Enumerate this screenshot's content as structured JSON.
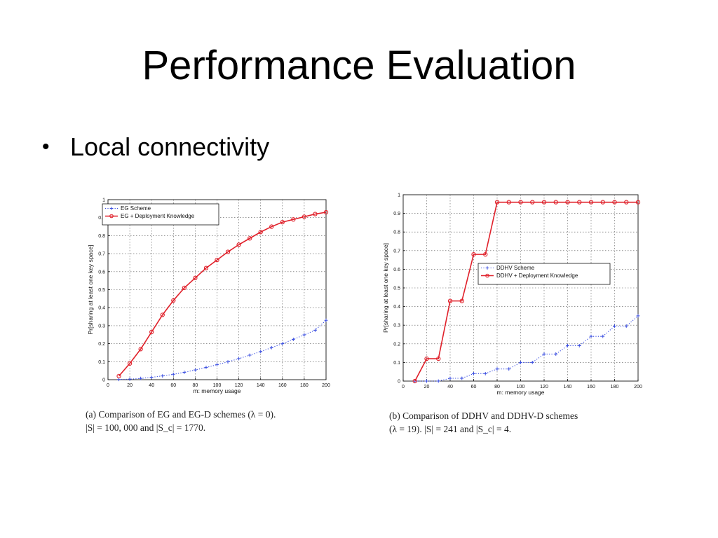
{
  "slide": {
    "title": "Performance Evaluation",
    "bullet_marker": "•",
    "bullet": "Local connectivity"
  },
  "captions": {
    "a_line1": "(a) Comparison of EG and EG-D schemes (λ = 0).",
    "a_line2": "|S| = 100, 000 and |S_c| = 1770.",
    "b_line1": "(b) Comparison of DDHV and DDHV-D schemes",
    "b_line2": "(λ = 19). |S| = 241 and |S_c| = 4."
  },
  "chart_data": [
    {
      "type": "line",
      "xlabel": "m: memory usage",
      "ylabel": "Pr[sharing at least one key space]",
      "xlim": [
        0,
        200
      ],
      "ylim": [
        0,
        1
      ],
      "x_ticks": [
        0,
        20,
        40,
        60,
        80,
        100,
        120,
        140,
        160,
        180,
        200
      ],
      "y_ticks": [
        0,
        0.1,
        0.2,
        0.3,
        0.4,
        0.5,
        0.6,
        0.7,
        0.8,
        0.9,
        1
      ],
      "grid": true,
      "legend_position": "top-left",
      "series": [
        {
          "name": "EG Scheme",
          "color": "#3b4fe0",
          "marker": "plus",
          "line_style": "dotted",
          "x": [
            10,
            20,
            30,
            40,
            50,
            60,
            70,
            80,
            90,
            100,
            110,
            120,
            130,
            140,
            150,
            160,
            170,
            180,
            190,
            200
          ],
          "y": [
            0.001,
            0.003,
            0.007,
            0.013,
            0.021,
            0.03,
            0.041,
            0.054,
            0.068,
            0.083,
            0.099,
            0.117,
            0.136,
            0.156,
            0.178,
            0.2,
            0.224,
            0.249,
            0.275,
            0.33
          ]
        },
        {
          "name": "EG + Deployment Knowledge",
          "color": "#e0202a",
          "marker": "circle",
          "line_style": "solid",
          "x": [
            10,
            20,
            30,
            40,
            50,
            60,
            70,
            80,
            90,
            100,
            110,
            120,
            130,
            140,
            150,
            160,
            170,
            180,
            190,
            200
          ],
          "y": [
            0.02,
            0.09,
            0.17,
            0.265,
            0.36,
            0.44,
            0.51,
            0.565,
            0.62,
            0.665,
            0.71,
            0.75,
            0.785,
            0.82,
            0.85,
            0.875,
            0.89,
            0.905,
            0.92,
            0.93
          ]
        }
      ]
    },
    {
      "type": "line",
      "xlabel": "m: memory usage",
      "ylabel": "Pr[sharing at least one key space]",
      "xlim": [
        0,
        200
      ],
      "ylim": [
        0,
        1
      ],
      "x_ticks": [
        0,
        20,
        40,
        60,
        80,
        100,
        120,
        140,
        160,
        180,
        200
      ],
      "y_ticks": [
        0,
        0.1,
        0.2,
        0.3,
        0.4,
        0.5,
        0.6,
        0.7,
        0.8,
        0.9,
        1
      ],
      "grid": true,
      "legend_position": "center-right",
      "series": [
        {
          "name": "DDHV Scheme",
          "color": "#3b4fe0",
          "marker": "plus",
          "line_style": "dotted",
          "x": [
            10,
            20,
            30,
            40,
            50,
            60,
            70,
            80,
            90,
            100,
            110,
            120,
            130,
            140,
            150,
            160,
            170,
            180,
            190,
            200
          ],
          "y": [
            0.0,
            0.0,
            0.0,
            0.015,
            0.015,
            0.04,
            0.04,
            0.065,
            0.065,
            0.1,
            0.1,
            0.145,
            0.145,
            0.19,
            0.19,
            0.24,
            0.24,
            0.295,
            0.295,
            0.35
          ]
        },
        {
          "name": "DDHV + Deployment Knowledge",
          "color": "#e0202a",
          "marker": "circle",
          "line_style": "solid",
          "x": [
            10,
            20,
            30,
            40,
            50,
            60,
            70,
            80,
            90,
            100,
            110,
            120,
            130,
            140,
            150,
            160,
            170,
            180,
            190,
            200
          ],
          "y": [
            0.0,
            0.12,
            0.12,
            0.43,
            0.43,
            0.68,
            0.68,
            0.96,
            0.96,
            0.96,
            0.96,
            0.96,
            0.96,
            0.96,
            0.96,
            0.96,
            0.96,
            0.96,
            0.96,
            0.96
          ]
        }
      ]
    }
  ]
}
